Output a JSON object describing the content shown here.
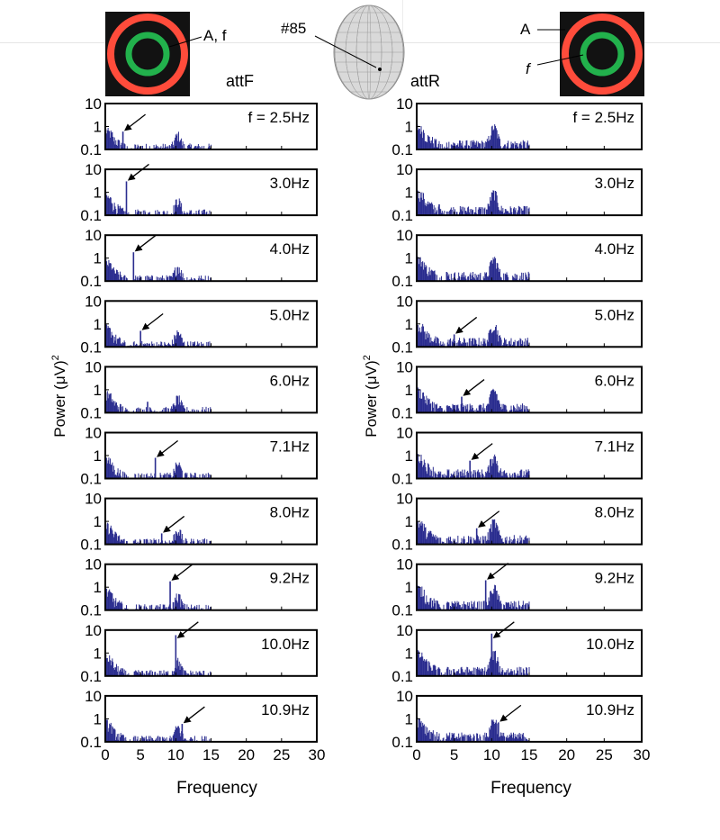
{
  "colors": {
    "spectrum": "#2b2d8f",
    "ring_outer": "#ff4c3b",
    "ring_inner": "#22b14c",
    "stimulus_bg": "#121212",
    "head": "#d9d9d9"
  },
  "labels": {
    "panel_left_title": "attF",
    "panel_right_title": "attR",
    "electrode": "#85",
    "stim_left_label": "A, f",
    "stim_right_label_A": "A",
    "stim_right_label_f": "f",
    "ylabel": "Power (μV)",
    "ylabel_exp": "2",
    "xlabel_left": "Frequency",
    "xlabel_right": "Frequency"
  },
  "chart_data": {
    "type": "bar",
    "xlim": [
      0,
      30
    ],
    "xticks": [
      "0",
      "5",
      "10",
      "15",
      "20",
      "25",
      "30"
    ],
    "ylim": [
      0.1,
      10
    ],
    "yscale": "log",
    "yticks": [
      "10",
      "1",
      "0.1"
    ],
    "rows": [
      {
        "label": "f = 2.5Hz",
        "freq": 2.5,
        "peak_attF": 0.6,
        "peak_attR": 0.25,
        "arrow_attF": true,
        "arrow_attR": false
      },
      {
        "label": "3.0Hz",
        "freq": 3.0,
        "peak_attF": 3.0,
        "peak_attR": 0.3,
        "arrow_attF": true,
        "arrow_attR": false
      },
      {
        "label": "4.0Hz",
        "freq": 4.0,
        "peak_attF": 1.8,
        "peak_attR": 0.25,
        "arrow_attF": true,
        "arrow_attR": false
      },
      {
        "label": "5.0Hz",
        "freq": 5.0,
        "peak_attF": 0.5,
        "peak_attR": 0.35,
        "arrow_attF": true,
        "arrow_attR": true
      },
      {
        "label": "6.0Hz",
        "freq": 6.0,
        "peak_attF": 0.3,
        "peak_attR": 0.5,
        "arrow_attF": false,
        "arrow_attR": true
      },
      {
        "label": "7.1Hz",
        "freq": 7.1,
        "peak_attF": 0.8,
        "peak_attR": 0.6,
        "arrow_attF": true,
        "arrow_attR": true
      },
      {
        "label": "8.0Hz",
        "freq": 8.0,
        "peak_attF": 0.3,
        "peak_attR": 0.5,
        "arrow_attF": true,
        "arrow_attR": true
      },
      {
        "label": "9.2Hz",
        "freq": 9.2,
        "peak_attF": 1.8,
        "peak_attR": 2.0,
        "arrow_attF": true,
        "arrow_attR": true
      },
      {
        "label": "10.0Hz",
        "freq": 10.0,
        "peak_attF": 6.0,
        "peak_attR": 7.0,
        "arrow_attF": true,
        "arrow_attR": true
      },
      {
        "label": "10.9Hz",
        "freq": 10.9,
        "peak_attF": 0.6,
        "peak_attR": 0.7,
        "arrow_attF": true,
        "arrow_attR": true
      }
    ]
  }
}
